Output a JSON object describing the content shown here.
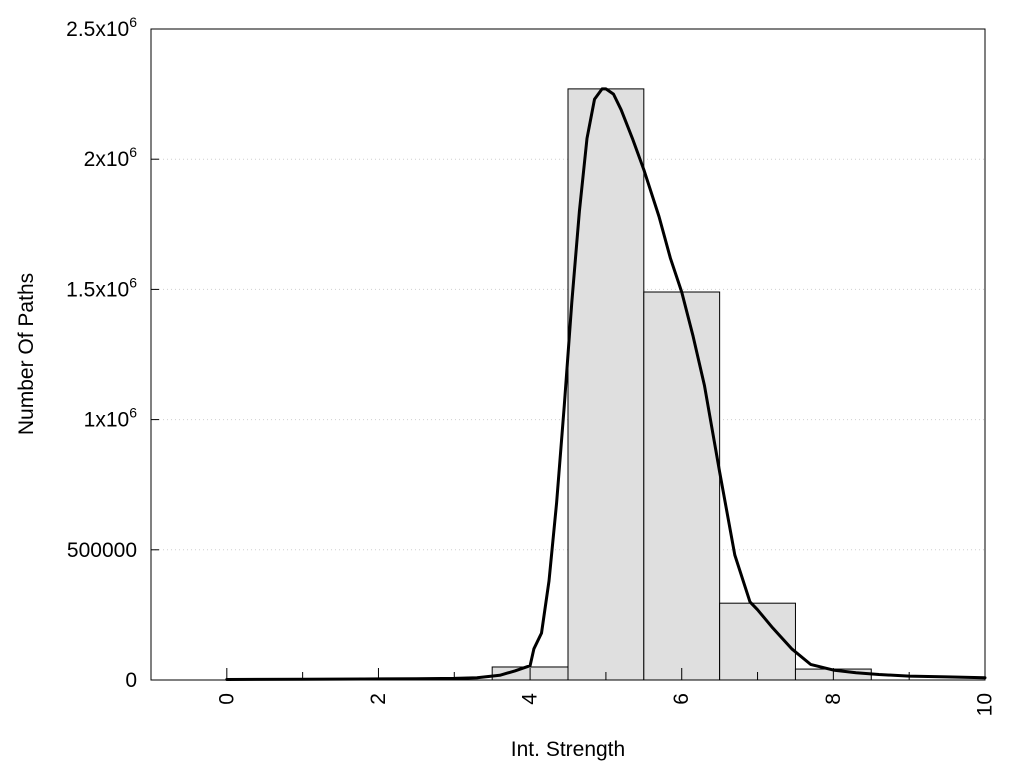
{
  "chart_data": {
    "type": "bar",
    "title": "",
    "xlabel": "Int. Strength",
    "ylabel": "Number Of Paths",
    "xlim": [
      -1,
      10
    ],
    "ylim": [
      0,
      2500000
    ],
    "grid": true,
    "bar_width": 1,
    "x": [
      4,
      5,
      6,
      7,
      8,
      9,
      10
    ],
    "values": [
      50000,
      2270000,
      1490000,
      295000,
      42000,
      0,
      0
    ],
    "x_ticks": [
      {
        "value": 0,
        "label": "0"
      },
      {
        "value": 2,
        "label": "2"
      },
      {
        "value": 4,
        "label": "4"
      },
      {
        "value": 6,
        "label": "6"
      },
      {
        "value": 8,
        "label": "8"
      },
      {
        "value": 10,
        "label": "10"
      }
    ],
    "x_minor_ticks": [
      1,
      3,
      5,
      7,
      9
    ],
    "y_ticks": [
      {
        "value": 0,
        "mant": "0",
        "exp": ""
      },
      {
        "value": 500000,
        "mant": "500000",
        "exp": ""
      },
      {
        "value": 1000000,
        "mant": "1x10",
        "exp": "6"
      },
      {
        "value": 1500000,
        "mant": "1.5x10",
        "exp": "6"
      },
      {
        "value": 2000000,
        "mant": "2x10",
        "exp": "6"
      },
      {
        "value": 2500000,
        "mant": "2.5x10",
        "exp": "6"
      }
    ],
    "curve": {
      "x": [
        0,
        1,
        1.8,
        2.5,
        3,
        3.3,
        3.6,
        3.8,
        4.0,
        4.05,
        4.15,
        4.25,
        4.35,
        4.45,
        4.55,
        4.65,
        4.75,
        4.85,
        4.95,
        5.0,
        5.1,
        5.2,
        5.35,
        5.5,
        5.7,
        5.85,
        6.0,
        6.15,
        6.3,
        6.5,
        6.7,
        6.9,
        7.0,
        7.2,
        7.45,
        7.7,
        8.0,
        8.3,
        8.6,
        9.0,
        9.5,
        10
      ],
      "y": [
        2000,
        3000,
        4000,
        5000,
        6000,
        9000,
        18000,
        35000,
        55000,
        120000,
        180000,
        380000,
        680000,
        1050000,
        1450000,
        1800000,
        2080000,
        2230000,
        2270000,
        2270000,
        2250000,
        2190000,
        2080000,
        1960000,
        1780000,
        1620000,
        1490000,
        1320000,
        1130000,
        800000,
        480000,
        300000,
        270000,
        200000,
        120000,
        60000,
        38000,
        28000,
        21000,
        15000,
        12000,
        9000
      ]
    }
  }
}
